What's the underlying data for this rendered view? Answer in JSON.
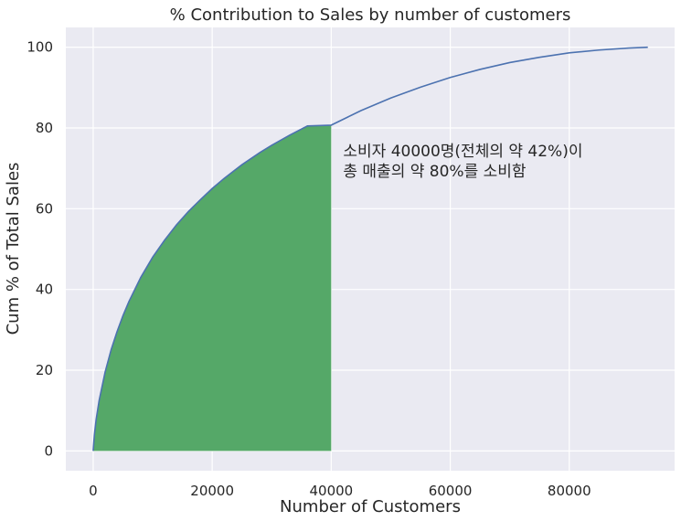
{
  "chart_data": {
    "type": "area",
    "title": "% Contribution to Sales by number of customers",
    "xlabel": "Number of Customers",
    "ylabel": "Cum % of Total Sales",
    "xlim": [
      -4600,
      97700
    ],
    "ylim": [
      -4.9,
      104.9
    ],
    "xticks": [
      0,
      20000,
      40000,
      60000,
      80000
    ],
    "xtick_labels": [
      "0",
      "20000",
      "40000",
      "60000",
      "80000"
    ],
    "yticks": [
      0,
      20,
      40,
      60,
      80,
      100
    ],
    "ytick_labels": [
      "0",
      "20",
      "40",
      "60",
      "80",
      "100"
    ],
    "grid": true,
    "background": "#eaeaf2",
    "grid_color": "#ffffff",
    "series": [
      {
        "kind": "line",
        "color": "#4c72b0",
        "x": [
          0,
          200,
          500,
          1000,
          2000,
          3000,
          4000,
          5000,
          6000,
          8000,
          10000,
          12000,
          14000,
          16000,
          18000,
          20000,
          22000,
          25000,
          28000,
          30000,
          33000,
          36000,
          40000,
          45000,
          50000,
          55000,
          60000,
          65000,
          70000,
          75000,
          80000,
          85000,
          90000,
          93200
        ],
        "y": [
          0,
          4.0,
          7.8,
          12.5,
          19.5,
          25.0,
          29.5,
          33.5,
          37.0,
          43.0,
          48.0,
          52.2,
          56.0,
          59.3,
          62.2,
          65.0,
          67.5,
          70.9,
          73.9,
          75.7,
          78.2,
          80.5,
          80.7,
          84.3,
          87.4,
          90.1,
          92.5,
          94.5,
          96.2,
          97.5,
          98.6,
          99.3,
          99.8,
          100
        ]
      },
      {
        "kind": "fill",
        "color": "#55a868",
        "x_range": [
          0,
          40000
        ]
      }
    ],
    "annotation": {
      "lines": [
        "소비자 40000명(전체의 약 42%)이",
        "총 매출의 약 80%를 소비함"
      ],
      "x": 42000,
      "y": 73
    }
  }
}
